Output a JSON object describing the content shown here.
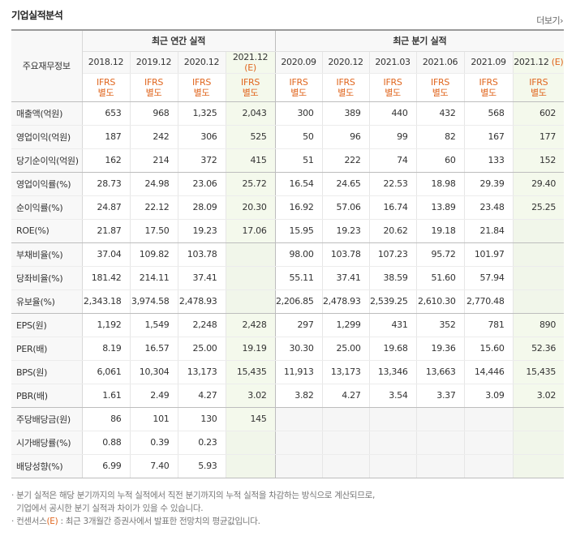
{
  "title": "기업실적분석",
  "more_label": "더보기",
  "more_arrow": "›",
  "corner_label": "주요재무정보",
  "groups": {
    "annual": "최근 연간 실적",
    "quarterly": "최근 분기 실적"
  },
  "periods": [
    {
      "label": "2018.12",
      "est": ""
    },
    {
      "label": "2019.12",
      "est": ""
    },
    {
      "label": "2020.12",
      "est": ""
    },
    {
      "label": "2021.12",
      "est": "(E)"
    },
    {
      "label": "2020.09",
      "est": ""
    },
    {
      "label": "2020.12",
      "est": ""
    },
    {
      "label": "2021.03",
      "est": ""
    },
    {
      "label": "2021.06",
      "est": ""
    },
    {
      "label": "2021.09",
      "est": ""
    },
    {
      "label": "2021.12",
      "est": "(E)"
    }
  ],
  "ifrs_line1": "IFRS",
  "ifrs_line2": "별도",
  "rows": [
    {
      "label": "매출액(억원)",
      "values": [
        "653",
        "968",
        "1,325",
        "2,043",
        "300",
        "389",
        "440",
        "432",
        "568",
        "602"
      ]
    },
    {
      "label": "영업이익(억원)",
      "values": [
        "187",
        "242",
        "306",
        "525",
        "50",
        "96",
        "99",
        "82",
        "167",
        "177"
      ]
    },
    {
      "label": "당기순이익(억원)",
      "values": [
        "162",
        "214",
        "372",
        "415",
        "51",
        "222",
        "74",
        "60",
        "133",
        "152"
      ],
      "grp_end": true
    },
    {
      "label": "영업이익률(%)",
      "values": [
        "28.73",
        "24.98",
        "23.06",
        "25.72",
        "16.54",
        "24.65",
        "22.53",
        "18.98",
        "29.39",
        "29.40"
      ]
    },
    {
      "label": "순이익률(%)",
      "values": [
        "24.87",
        "22.12",
        "28.09",
        "20.30",
        "16.92",
        "57.06",
        "16.74",
        "13.89",
        "23.48",
        "25.25"
      ]
    },
    {
      "label": "ROE(%)",
      "values": [
        "21.87",
        "17.50",
        "19.23",
        "17.06",
        "15.95",
        "19.23",
        "20.62",
        "19.18",
        "21.84",
        ""
      ],
      "grp_end": true
    },
    {
      "label": "부채비율(%)",
      "values": [
        "37.04",
        "109.82",
        "103.78",
        "",
        "98.00",
        "103.78",
        "107.23",
        "95.72",
        "101.97",
        ""
      ]
    },
    {
      "label": "당좌비율(%)",
      "values": [
        "181.42",
        "214.11",
        "37.41",
        "",
        "55.11",
        "37.41",
        "38.59",
        "51.60",
        "57.94",
        ""
      ]
    },
    {
      "label": "유보율(%)",
      "values": [
        "2,343.18",
        "3,974.58",
        "2,478.93",
        "",
        "2,206.85",
        "2,478.93",
        "2,539.25",
        "2,610.30",
        "2,770.48",
        ""
      ],
      "grp_end": true
    },
    {
      "label": "EPS(원)",
      "values": [
        "1,192",
        "1,549",
        "2,248",
        "2,428",
        "297",
        "1,299",
        "431",
        "352",
        "781",
        "890"
      ]
    },
    {
      "label": "PER(배)",
      "values": [
        "8.19",
        "16.57",
        "25.00",
        "19.19",
        "30.30",
        "25.00",
        "19.68",
        "19.36",
        "15.60",
        "52.36"
      ]
    },
    {
      "label": "BPS(원)",
      "values": [
        "6,061",
        "10,304",
        "13,173",
        "15,435",
        "11,913",
        "13,173",
        "13,346",
        "13,663",
        "14,446",
        "15,435"
      ]
    },
    {
      "label": "PBR(배)",
      "values": [
        "1.61",
        "2.49",
        "4.27",
        "3.02",
        "3.82",
        "4.27",
        "3.54",
        "3.37",
        "3.09",
        "3.02"
      ],
      "grp_end": true
    },
    {
      "label": "주당배당금(원)",
      "values": [
        "86",
        "101",
        "130",
        "145",
        "",
        "",
        "",
        "",
        "",
        ""
      ]
    },
    {
      "label": "시가배당률(%)",
      "values": [
        "0.88",
        "0.39",
        "0.23",
        "",
        "",
        "",
        "",
        "",
        "",
        ""
      ]
    },
    {
      "label": "배당성향(%)",
      "values": [
        "6.99",
        "7.40",
        "5.93",
        "",
        "",
        "",
        "",
        "",
        "",
        ""
      ],
      "grp_end": true
    }
  ],
  "notes": {
    "line1": "· 분기 실적은 해당 분기까지의 누적 실적에서 직전 분기까지의 누적 실적을 차감하는 방식으로 계산되므로,",
    "line2": "  기업에서 공시한 분기 실적과 차이가 있을 수 있습니다.",
    "line3_prefix": "· 컨센서스",
    "line3_mark": "(E)",
    "line3_suffix": " : 최근 3개월간 증권사에서 발표한 전망치의 평균값입니다."
  }
}
